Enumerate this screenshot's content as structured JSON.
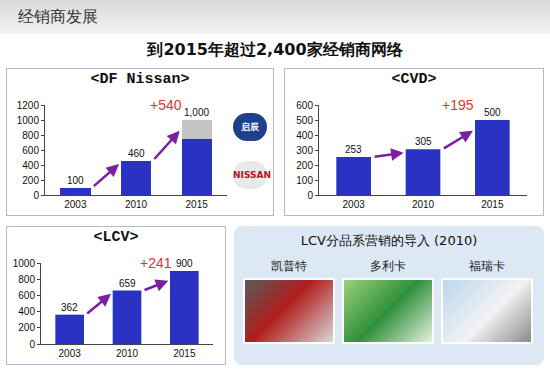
{
  "header": {
    "section": "经销商发展",
    "title": "到2015年超过2,400家经销商网络"
  },
  "chart_data": [
    {
      "type": "bar",
      "title": "<DF Nissan>",
      "categories": [
        "2003",
        "2010",
        "2015"
      ],
      "stacked": true,
      "series": [
        {
          "color": "#2a32c4",
          "values": [
            100,
            460,
            750
          ]
        },
        {
          "color": "#c4c4c4",
          "values": [
            null,
            null,
            250
          ]
        }
      ],
      "data_labels": true,
      "total_labels": [
        "100",
        "460",
        "1,000"
      ],
      "annotations": [
        {
          "text": "+540"
        }
      ],
      "logos": [
        "启辰",
        "NISSAN"
      ],
      "ylim": [
        0,
        1200
      ],
      "yticks": [
        0,
        200,
        400,
        600,
        800,
        1000,
        1200
      ],
      "grid": false
    },
    {
      "type": "bar",
      "title": "<CVD>",
      "categories": [
        "2003",
        "2010",
        "2015"
      ],
      "values": [
        253,
        305,
        500
      ],
      "color": "#2a32c4",
      "data_labels": true,
      "annotations": [
        {
          "text": "+195"
        }
      ],
      "ylim": [
        0,
        600
      ],
      "yticks": [
        0,
        100,
        200,
        300,
        400,
        500,
        600
      ],
      "grid": false
    },
    {
      "type": "bar",
      "title": "<LCV>",
      "categories": [
        "2003",
        "2010",
        "2015"
      ],
      "values": [
        362,
        659,
        900
      ],
      "color": "#2a32c4",
      "data_labels": true,
      "annotations": [
        {
          "text": "+241"
        }
      ],
      "ylim": [
        0,
        1000
      ],
      "yticks": [
        0,
        200,
        400,
        600,
        800,
        1000
      ],
      "grid": false
    }
  ],
  "lcv_panel": {
    "title": "LCV分品系营销的导入 (2010)",
    "brands": [
      "凯普特",
      "多利卡",
      "福瑞卡"
    ]
  }
}
